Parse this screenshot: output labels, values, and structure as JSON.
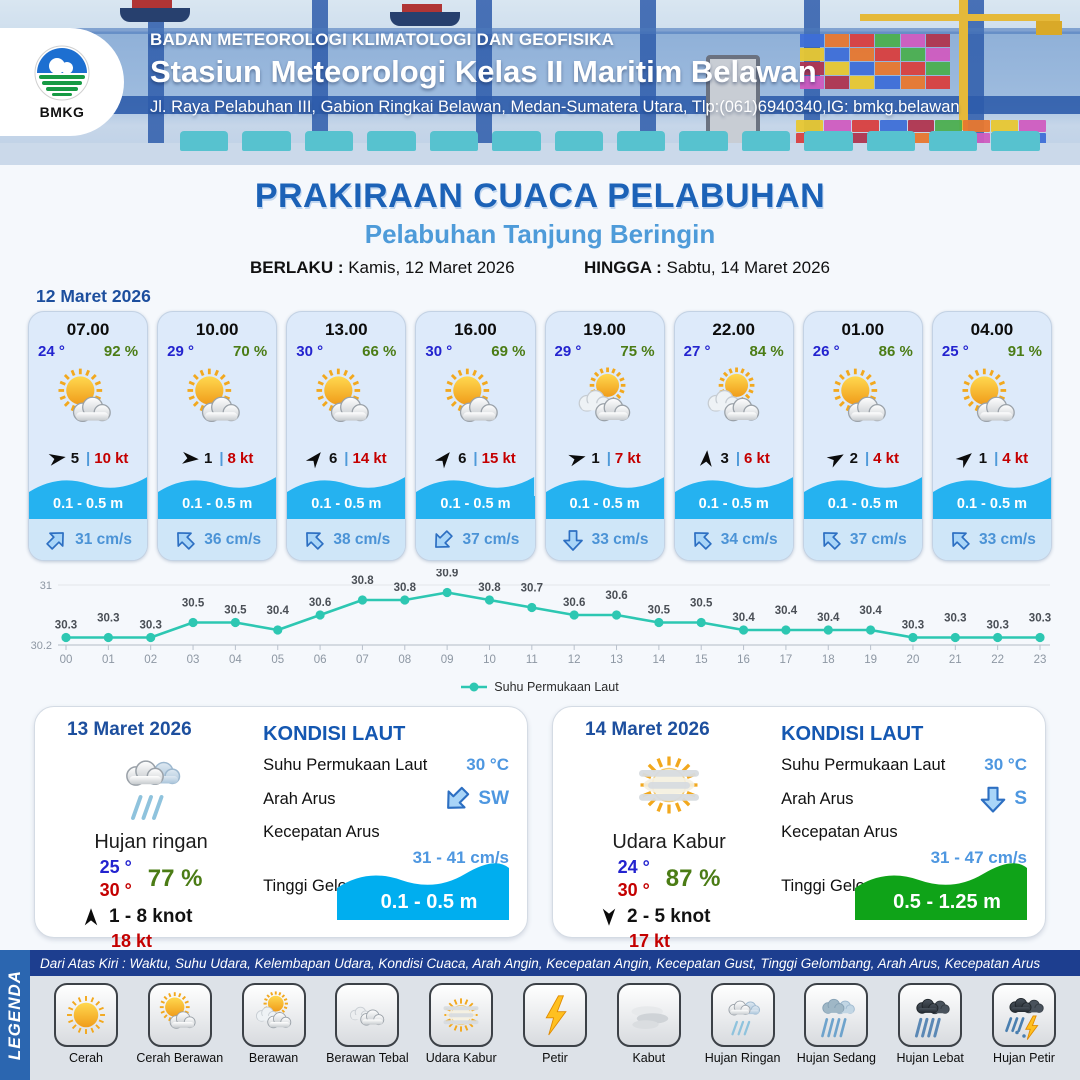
{
  "header": {
    "org": "BADAN METEOROLOGI KLIMATOLOGI DAN GEOFISIKA",
    "station": "Stasiun Meteorologi Kelas II Maritim Belawan",
    "address": "Jl. Raya Pelabuhan III, Gabion Ringkai Belawan, Medan-Sumatera Utara, Tlp:(061)6940340,IG: bmkg.belawan",
    "logo_label": "BMKG"
  },
  "title": {
    "main": "PRAKIRAAN CUACA PELABUHAN",
    "subtitle": "Pelabuhan Tanjung Beringin",
    "berlaku_label": "BERLAKU :",
    "berlaku_value": "Kamis, 12 Maret 2026",
    "hingga_label": "HINGGA :",
    "hingga_value": "Sabtu, 14 Maret 2026"
  },
  "forecast": {
    "date_label": "12 Maret 2026",
    "cards": [
      {
        "time": "07.00",
        "temp": "24 °",
        "humidity": "92 %",
        "icon": "cerah-berawan",
        "wind_dir_deg": 80,
        "wind_speed": "5",
        "gust": "10 kt",
        "wave": "0.1 - 0.5 m",
        "current_deg": 45,
        "current_speed": "31 cm/s"
      },
      {
        "time": "10.00",
        "temp": "29 °",
        "humidity": "70 %",
        "icon": "cerah-berawan",
        "wind_dir_deg": 95,
        "wind_speed": "1",
        "gust": "8 kt",
        "wave": "0.1 - 0.5 m",
        "current_deg": -45,
        "current_speed": "36 cm/s"
      },
      {
        "time": "13.00",
        "temp": "30 °",
        "humidity": "66 %",
        "icon": "cerah-berawan",
        "wind_dir_deg": 40,
        "wind_speed": "6",
        "gust": "14 kt",
        "wave": "0.1 - 0.5 m",
        "current_deg": -45,
        "current_speed": "38 cm/s"
      },
      {
        "time": "16.00",
        "temp": "30 °",
        "humidity": "69 %",
        "icon": "cerah-berawan",
        "wind_dir_deg": 40,
        "wind_speed": "6",
        "gust": "15 kt",
        "wave": "0.1 - 0.5 m",
        "current_deg": -135,
        "current_speed": "37 cm/s"
      },
      {
        "time": "19.00",
        "temp": "29 °",
        "humidity": "75 %",
        "icon": "berawan",
        "wind_dir_deg": 75,
        "wind_speed": "1",
        "gust": "7 kt",
        "wave": "0.1 - 0.5 m",
        "current_deg": 180,
        "current_speed": "33 cm/s"
      },
      {
        "time": "22.00",
        "temp": "27 °",
        "humidity": "84 %",
        "icon": "berawan",
        "wind_dir_deg": 5,
        "wind_speed": "3",
        "gust": "6 kt",
        "wave": "0.1 - 0.5 m",
        "current_deg": -45,
        "current_speed": "34 cm/s"
      },
      {
        "time": "01.00",
        "temp": "26 °",
        "humidity": "86 %",
        "icon": "cerah-berawan",
        "wind_dir_deg": 60,
        "wind_speed": "2",
        "gust": "4 kt",
        "wave": "0.1 - 0.5 m",
        "current_deg": -45,
        "current_speed": "37 cm/s"
      },
      {
        "time": "04.00",
        "temp": "25 °",
        "humidity": "91 %",
        "icon": "cerah-berawan",
        "wind_dir_deg": 50,
        "wind_speed": "1",
        "gust": "4 kt",
        "wave": "0.1 - 0.5 m",
        "current_deg": -45,
        "current_speed": "33 cm/s"
      }
    ]
  },
  "chart_data": {
    "type": "line",
    "x": [
      "00",
      "01",
      "02",
      "03",
      "04",
      "05",
      "06",
      "07",
      "08",
      "09",
      "10",
      "11",
      "12",
      "13",
      "14",
      "15",
      "16",
      "17",
      "18",
      "19",
      "20",
      "21",
      "22",
      "23"
    ],
    "series": [
      {
        "name": "Suhu Permukaan Laut",
        "values": [
          30.3,
          30.3,
          30.3,
          30.5,
          30.5,
          30.4,
          30.6,
          30.8,
          30.8,
          30.9,
          30.8,
          30.7,
          30.6,
          30.6,
          30.5,
          30.5,
          30.4,
          30.4,
          30.4,
          30.4,
          30.3,
          30.3,
          30.3,
          30.3
        ]
      }
    ],
    "ylim": [
      30.2,
      31
    ],
    "yticks": [
      "31",
      "30.2"
    ],
    "line_color": "#2dc7b2",
    "grid": true,
    "legend_position": "bottom",
    "title": "",
    "xlabel": "",
    "ylabel": ""
  },
  "panels": [
    {
      "date": "13 Maret 2026",
      "icon": "hujan-ringan",
      "condition": "Hujan ringan",
      "temp_low": "25 °",
      "temp_high": "30 °",
      "humidity": "77 %",
      "wind_deg": 0,
      "wind_range": "1  - 8 knot",
      "gust": "18 kt",
      "sea": {
        "title": "KONDISI LAUT",
        "sst_label": "Suhu Permukaan Laut",
        "sst": "30 °C",
        "arah_label": "Arah Arus",
        "arah": "SW",
        "arah_deg": -135,
        "kecepatan_label": "Kecepatan Arus",
        "kecepatan": "31  - 41 cm/s",
        "gelombang_label": "Tinggi Gelombang",
        "gelombang": "0.1 - 0.5 m",
        "wave_color": "#00aeef"
      }
    },
    {
      "date": "14 Maret 2026",
      "icon": "udara-kabur",
      "condition": "Udara Kabur",
      "temp_low": "24 °",
      "temp_high": "30 °",
      "humidity": "87 %",
      "wind_deg": 180,
      "wind_range": "2  - 5 knot",
      "gust": "17 kt",
      "sea": {
        "title": "KONDISI LAUT",
        "sst_label": "Suhu Permukaan Laut",
        "sst": "30 °C",
        "arah_label": "Arah Arus",
        "arah": "S",
        "arah_deg": 180,
        "kecepatan_label": "Kecepatan Arus",
        "kecepatan": "31  - 47 cm/s",
        "gelombang_label": "Tinggi Gelombang",
        "gelombang": "0.5 - 1.25 m",
        "wave_color": "#0fa318"
      }
    }
  ],
  "legend": {
    "sidebar": "LEGENDA",
    "note": "Dari Atas Kiri : Waktu, Suhu Udara, Kelembapan Udara, Kondisi Cuaca, Arah Angin, Kecepatan Angin, Kecepatan Gust, Tinggi Gelombang, Arah Arus, Kecepatan Arus",
    "items": [
      {
        "label": "Cerah",
        "icon": "cerah"
      },
      {
        "label": "Cerah Berawan",
        "icon": "cerah-berawan"
      },
      {
        "label": "Berawan",
        "icon": "berawan"
      },
      {
        "label": "Berawan Tebal",
        "icon": "berawan-tebal"
      },
      {
        "label": "Udara Kabur",
        "icon": "udara-kabur"
      },
      {
        "label": "Petir",
        "icon": "petir"
      },
      {
        "label": "Kabut",
        "icon": "kabut"
      },
      {
        "label": "Hujan Ringan",
        "icon": "hujan-ringan"
      },
      {
        "label": "Hujan Sedang",
        "icon": "hujan-sedang"
      },
      {
        "label": "Hujan Lebat",
        "icon": "hujan-lebat"
      },
      {
        "label": "Hujan Petir",
        "icon": "hujan-petir"
      }
    ]
  },
  "colors": {
    "navy": "#1d4f9e",
    "title_blue": "#1c62b7",
    "subtitle_blue": "#4e9bd9",
    "temp_blue": "#2323cf",
    "humidity_green": "#4b7c15",
    "gust_red": "#c40000",
    "wave_blue": "#25b2f0",
    "wave_green": "#0fa318",
    "chart_teal": "#2dc7b2",
    "legend_band": "#1d3e8f",
    "sidebar_blue": "#2b66b0"
  }
}
